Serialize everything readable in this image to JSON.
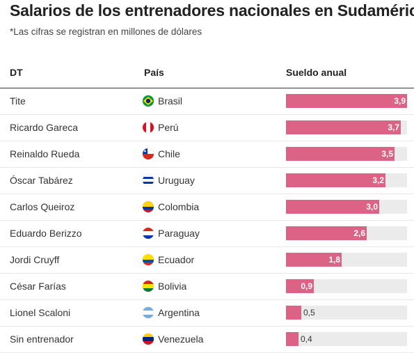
{
  "title": "Salarios de los entrenadores nacionales en Sudamérica",
  "subtitle": "*Las cifras se registran en millones de dólares",
  "columns": {
    "dt": "DT",
    "pais": "País",
    "sueldo": "Sueldo anual"
  },
  "colors": {
    "bar": "#dd6386",
    "track": "#ebebeb"
  },
  "chart_data": {
    "type": "bar",
    "orientation": "horizontal",
    "title": "Salarios de los entrenadores nacionales en Sudamérica",
    "subtitle": "*Las cifras se registran en millones de dólares",
    "xlim": [
      0,
      3.9
    ],
    "rows": [
      {
        "dt": "Tite",
        "country": "Brasil",
        "flag": "brasil-flag-icon",
        "value": 3.9,
        "label": "3,9"
      },
      {
        "dt": "Ricardo Gareca",
        "country": "Perú",
        "flag": "peru-flag-icon",
        "value": 3.7,
        "label": "3,7"
      },
      {
        "dt": "Reinaldo Rueda",
        "country": "Chile",
        "flag": "chile-flag-icon",
        "value": 3.5,
        "label": "3,5"
      },
      {
        "dt": "Óscar Tabárez",
        "country": "Uruguay",
        "flag": "uruguay-flag-icon",
        "value": 3.2,
        "label": "3,2"
      },
      {
        "dt": "Carlos Queiroz",
        "country": "Colombia",
        "flag": "colombia-flag-icon",
        "value": 3.0,
        "label": "3,0"
      },
      {
        "dt": "Eduardo Berizzo",
        "country": "Paraguay",
        "flag": "paraguay-flag-icon",
        "value": 2.6,
        "label": "2,6"
      },
      {
        "dt": "Jordi Cruyff",
        "country": "Ecuador",
        "flag": "ecuador-flag-icon",
        "value": 1.8,
        "label": "1,8"
      },
      {
        "dt": "César Farías",
        "country": "Bolivia",
        "flag": "bolivia-flag-icon",
        "value": 0.9,
        "label": "0,9"
      },
      {
        "dt": "Lionel Scaloni",
        "country": "Argentina",
        "flag": "argentina-flag-icon",
        "value": 0.5,
        "label": "0,5"
      },
      {
        "dt": "Sin entrenador",
        "country": "Venezuela",
        "flag": "venezuela-flag-icon",
        "value": 0.4,
        "label": "0,4"
      }
    ]
  }
}
